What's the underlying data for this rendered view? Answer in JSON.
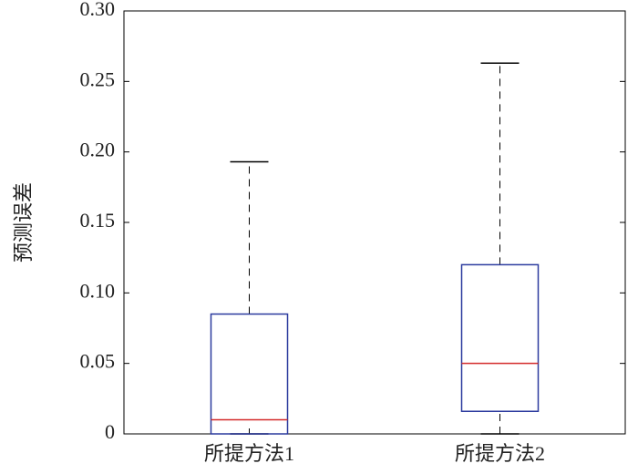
{
  "chart_data": {
    "type": "box",
    "y_label": "预测误差",
    "categories": [
      "所提方法1",
      "所提方法2"
    ],
    "boxes": [
      {
        "min": 0,
        "q1": 0,
        "median": 0.01,
        "q3": 0.085,
        "max": 0.193
      },
      {
        "min": 0,
        "q1": 0.016,
        "median": 0.05,
        "q3": 0.12,
        "max": 0.263
      }
    ],
    "box_color": "#2b3a9e",
    "median_color": "#d42a2a",
    "whisker_color": "#000000",
    "ylim": [
      0,
      0.3
    ],
    "yticks": [
      0,
      0.05,
      {
        "value": 0.1,
        "label": "0.10"
      },
      0.15,
      {
        "value": 0.2,
        "label": "0.20"
      },
      0.25,
      {
        "value": 0.3,
        "label": "0.30"
      }
    ]
  }
}
